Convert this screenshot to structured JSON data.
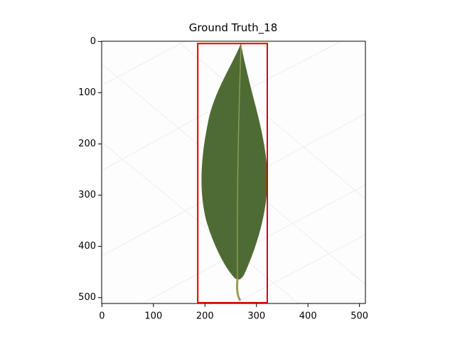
{
  "chart_data": {
    "type": "image",
    "title": "Ground Truth_18",
    "xlim": [
      -0.5,
      511.5
    ],
    "ylim": [
      511.5,
      -0.5
    ],
    "xticks": [
      0,
      100,
      200,
      300,
      400,
      500
    ],
    "yticks": [
      0,
      100,
      200,
      300,
      400,
      500
    ],
    "boxes": [
      {
        "x": [
          186,
          321
        ],
        "y": [
          4,
          510
        ],
        "color": "#e00000"
      }
    ]
  }
}
